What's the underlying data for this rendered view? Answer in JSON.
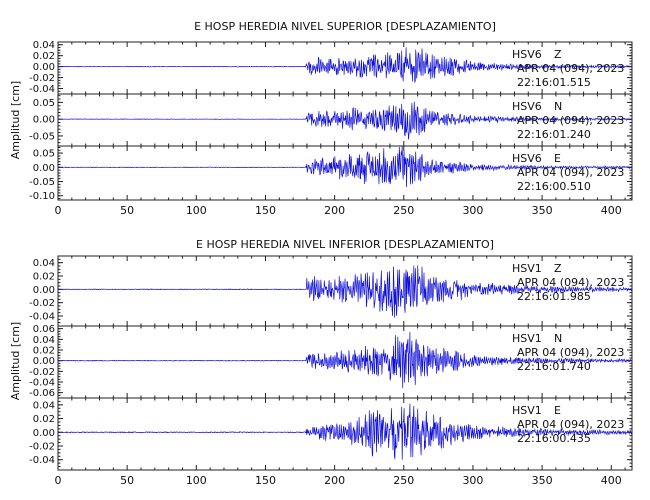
{
  "colors": {
    "trace": "#1010d8",
    "axis": "#222222",
    "background": "#ffffff"
  },
  "chart_data": [
    {
      "type": "line",
      "title": "E HOSP HEREDIA NIVEL SUPERIOR [DESPLAZAMIENTO]",
      "ylabel": "Amplitud [cm]",
      "xlabel": "",
      "xlim": [
        0,
        415
      ],
      "x_ticks": [
        "0",
        "50",
        "100",
        "150",
        "200",
        "250",
        "300",
        "350",
        "400"
      ],
      "panels": [
        {
          "station": "HSV6",
          "component": "Z",
          "date": "APR 04 (094), 2023",
          "time": "22:16:01.515",
          "ylim": [
            -0.05,
            0.045
          ],
          "y_ticks": [
            "0.04",
            "0.02",
            "0.00",
            "-0.02",
            "-0.04"
          ],
          "envelope": [
            {
              "t": 0,
              "amp": 0.0008
            },
            {
              "t": 179,
              "amp": 0.0008
            },
            {
              "t": 180,
              "amp": 0.018
            },
            {
              "t": 200,
              "amp": 0.016
            },
            {
              "t": 225,
              "amp": 0.022
            },
            {
              "t": 245,
              "amp": 0.03
            },
            {
              "t": 255,
              "amp": 0.045
            },
            {
              "t": 270,
              "amp": 0.026
            },
            {
              "t": 300,
              "amp": 0.01
            },
            {
              "t": 340,
              "amp": 0.004
            },
            {
              "t": 415,
              "amp": 0.002
            }
          ]
        },
        {
          "station": "HSV6",
          "component": "N",
          "date": "APR 04 (094), 2023",
          "time": "22:16:01.240",
          "ylim": [
            -0.08,
            0.075
          ],
          "y_ticks": [
            "0.05",
            "0.00",
            "-0.05"
          ],
          "envelope": [
            {
              "t": 0,
              "amp": 0.001
            },
            {
              "t": 179,
              "amp": 0.001
            },
            {
              "t": 180,
              "amp": 0.022
            },
            {
              "t": 205,
              "amp": 0.035
            },
            {
              "t": 225,
              "amp": 0.035
            },
            {
              "t": 245,
              "amp": 0.045
            },
            {
              "t": 253,
              "amp": 0.07
            },
            {
              "t": 270,
              "amp": 0.03
            },
            {
              "t": 300,
              "amp": 0.012
            },
            {
              "t": 340,
              "amp": 0.005
            },
            {
              "t": 415,
              "amp": 0.003
            }
          ]
        },
        {
          "station": "HSV6",
          "component": "E",
          "date": "APR 04 (094), 2023",
          "time": "22:16:00.510",
          "ylim": [
            -0.115,
            0.075
          ],
          "y_ticks": [
            "0.05",
            "0.00",
            "-0.05",
            "-0.10"
          ],
          "envelope": [
            {
              "t": 0,
              "amp": 0.0015
            },
            {
              "t": 179,
              "amp": 0.0015
            },
            {
              "t": 180,
              "amp": 0.028
            },
            {
              "t": 200,
              "amp": 0.04
            },
            {
              "t": 222,
              "amp": 0.06
            },
            {
              "t": 238,
              "amp": 0.075
            },
            {
              "t": 250,
              "amp": 0.085
            },
            {
              "t": 268,
              "amp": 0.035
            },
            {
              "t": 300,
              "amp": 0.014
            },
            {
              "t": 340,
              "amp": 0.006
            },
            {
              "t": 415,
              "amp": 0.004
            }
          ]
        }
      ]
    },
    {
      "type": "line",
      "title": "E HOSP HEREDIA NIVEL INFERIOR [DESPLAZAMIENTO]",
      "ylabel": "Amplitud [cm]",
      "xlabel": "",
      "xlim": [
        0,
        415
      ],
      "x_ticks": [
        "0",
        "50",
        "100",
        "150",
        "200",
        "250",
        "300",
        "350",
        "400"
      ],
      "panels": [
        {
          "station": "HSV1",
          "component": "Z",
          "date": "APR 04 (094), 2023",
          "time": "22:16:01.985",
          "ylim": [
            -0.055,
            0.05
          ],
          "y_ticks": [
            "0.04",
            "0.02",
            "0.00",
            "-0.02",
            "-0.04"
          ],
          "envelope": [
            {
              "t": 0,
              "amp": 0.0008
            },
            {
              "t": 179,
              "amp": 0.0008
            },
            {
              "t": 180,
              "amp": 0.022
            },
            {
              "t": 205,
              "amp": 0.02
            },
            {
              "t": 225,
              "amp": 0.03
            },
            {
              "t": 245,
              "amp": 0.045
            },
            {
              "t": 255,
              "amp": 0.04
            },
            {
              "t": 272,
              "amp": 0.03
            },
            {
              "t": 300,
              "amp": 0.012
            },
            {
              "t": 340,
              "amp": 0.006
            },
            {
              "t": 415,
              "amp": 0.003
            }
          ]
        },
        {
          "station": "HSV1",
          "component": "N",
          "date": "APR 04 (094), 2023",
          "time": "22:16:01.740",
          "ylim": [
            -0.07,
            0.065
          ],
          "y_ticks": [
            "0.06",
            "0.04",
            "0.02",
            "0.00",
            "-0.02",
            "-0.04",
            "-0.06"
          ],
          "envelope": [
            {
              "t": 0,
              "amp": 0.001
            },
            {
              "t": 179,
              "amp": 0.001
            },
            {
              "t": 180,
              "amp": 0.015
            },
            {
              "t": 205,
              "amp": 0.02
            },
            {
              "t": 225,
              "amp": 0.03
            },
            {
              "t": 240,
              "amp": 0.04
            },
            {
              "t": 250,
              "amp": 0.065
            },
            {
              "t": 265,
              "amp": 0.035
            },
            {
              "t": 300,
              "amp": 0.012
            },
            {
              "t": 340,
              "amp": 0.006
            },
            {
              "t": 415,
              "amp": 0.003
            }
          ]
        },
        {
          "station": "HSV1",
          "component": "E",
          "date": "APR 04 (094), 2023",
          "time": "22:16:00.435",
          "ylim": [
            -0.055,
            0.05
          ],
          "y_ticks": [
            "0.04",
            "0.02",
            "0.00",
            "-0.02",
            "-0.04"
          ],
          "envelope": [
            {
              "t": 0,
              "amp": 0.001
            },
            {
              "t": 179,
              "amp": 0.001
            },
            {
              "t": 180,
              "amp": 0.01
            },
            {
              "t": 205,
              "amp": 0.015
            },
            {
              "t": 225,
              "amp": 0.035
            },
            {
              "t": 240,
              "amp": 0.04
            },
            {
              "t": 252,
              "amp": 0.05
            },
            {
              "t": 268,
              "amp": 0.03
            },
            {
              "t": 300,
              "amp": 0.012
            },
            {
              "t": 340,
              "amp": 0.006
            },
            {
              "t": 415,
              "amp": 0.003
            }
          ]
        }
      ]
    }
  ]
}
